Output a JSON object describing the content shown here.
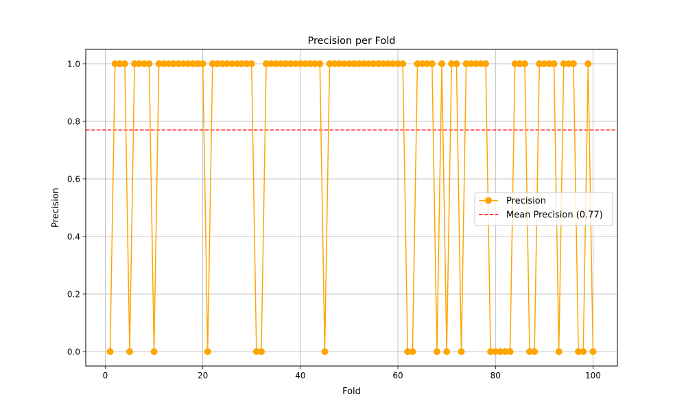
{
  "chart_data": {
    "type": "line",
    "title": "Precision per Fold",
    "xlabel": "Fold",
    "ylabel": "Precision",
    "xlim": [
      -4,
      105
    ],
    "ylim": [
      -0.05,
      1.05
    ],
    "x_ticks": [
      0,
      20,
      40,
      60,
      80,
      100
    ],
    "y_ticks": [
      0.0,
      0.2,
      0.4,
      0.6,
      0.8,
      1.0
    ],
    "x_tick_labels": [
      "0",
      "20",
      "40",
      "60",
      "80",
      "100"
    ],
    "y_tick_labels": [
      "0.0",
      "0.2",
      "0.4",
      "0.6",
      "0.8",
      "1.0"
    ],
    "grid": true,
    "legend_position": "center-right",
    "series": [
      {
        "name": "Precision",
        "color": "#ffa500",
        "marker": "circle",
        "line_style": "solid",
        "x": [
          1,
          2,
          3,
          4,
          5,
          6,
          7,
          8,
          9,
          10,
          11,
          12,
          13,
          14,
          15,
          16,
          17,
          18,
          19,
          20,
          21,
          22,
          23,
          24,
          25,
          26,
          27,
          28,
          29,
          30,
          31,
          32,
          33,
          34,
          35,
          36,
          37,
          38,
          39,
          40,
          41,
          42,
          43,
          44,
          45,
          46,
          47,
          48,
          49,
          50,
          51,
          52,
          53,
          54,
          55,
          56,
          57,
          58,
          59,
          60,
          61,
          62,
          63,
          64,
          65,
          66,
          67,
          68,
          69,
          70,
          71,
          72,
          73,
          74,
          75,
          76,
          77,
          78,
          79,
          80,
          81,
          82,
          83,
          84,
          85,
          86,
          87,
          88,
          89,
          90,
          91,
          92,
          93,
          94,
          95,
          96,
          97,
          98,
          99,
          100
        ],
        "values": [
          0,
          1,
          1,
          1,
          0,
          1,
          1,
          1,
          1,
          0,
          1,
          1,
          1,
          1,
          1,
          1,
          1,
          1,
          1,
          1,
          0,
          1,
          1,
          1,
          1,
          1,
          1,
          1,
          1,
          1,
          0,
          0,
          1,
          1,
          1,
          1,
          1,
          1,
          1,
          1,
          1,
          1,
          1,
          1,
          0,
          1,
          1,
          1,
          1,
          1,
          1,
          1,
          1,
          1,
          1,
          1,
          1,
          1,
          1,
          1,
          1,
          0,
          0,
          1,
          1,
          1,
          1,
          0,
          1,
          0,
          1,
          1,
          0,
          1,
          1,
          1,
          1,
          1,
          0,
          0,
          0,
          0,
          0,
          1,
          1,
          1,
          0,
          0,
          1,
          1,
          1,
          1,
          0,
          1,
          1,
          1,
          0,
          0,
          1,
          0
        ]
      }
    ],
    "reference_lines": [
      {
        "name": "Mean Precision (0.77)",
        "y": 0.77,
        "color": "#ff0000",
        "line_style": "dashed"
      }
    ]
  }
}
